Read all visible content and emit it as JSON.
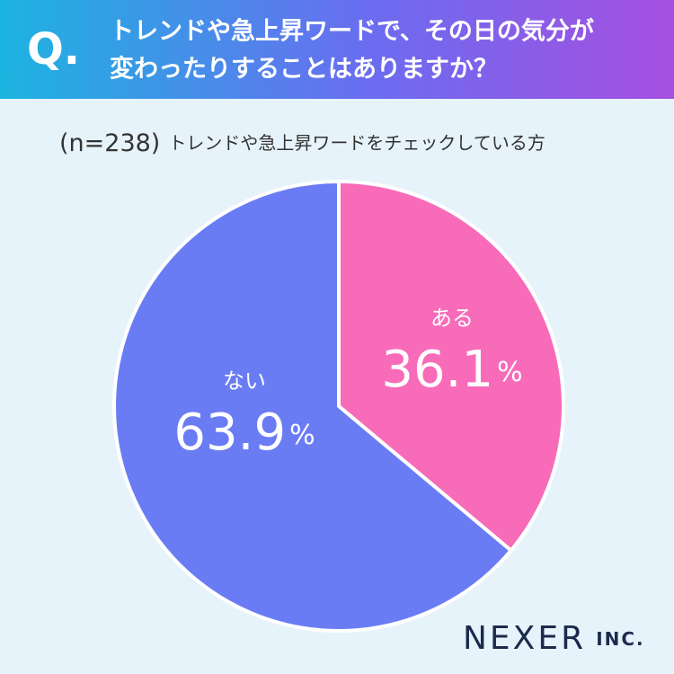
{
  "chart_data": {
    "type": "pie",
    "question_label": "Q.",
    "title": [
      "トレンドや急上昇ワードで、その日の気分が",
      "変わったりすることはありますか？"
    ],
    "sample": "(n=238)",
    "subtitle": "トレンドや急上昇ワードをチェックしている方",
    "categories": [
      "ある",
      "ない"
    ],
    "values": [
      36.1,
      63.9
    ],
    "unit": "%",
    "colors": [
      "#f76bb9",
      "#6a7cf4"
    ],
    "brand": "NEXER",
    "brand_suffix": "INC."
  }
}
